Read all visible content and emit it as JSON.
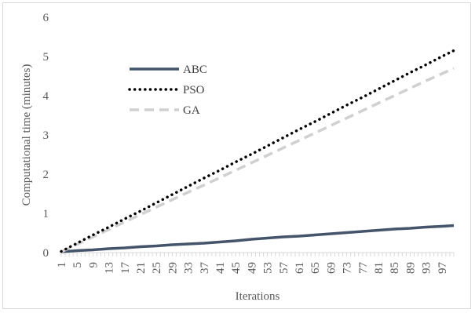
{
  "chart_data": {
    "type": "line",
    "title": "",
    "xlabel": "Iterations",
    "ylabel": "Computational time (minutes)",
    "ylim": [
      0,
      6
    ],
    "yticks": [
      0,
      1,
      2,
      3,
      4,
      5,
      6
    ],
    "x": [
      1,
      5,
      9,
      13,
      17,
      21,
      25,
      29,
      33,
      37,
      41,
      45,
      49,
      53,
      57,
      61,
      65,
      69,
      73,
      77,
      81,
      85,
      89,
      93,
      97,
      100
    ],
    "xtick_labels": [
      "1",
      "5",
      "9",
      "13",
      "17",
      "21",
      "25",
      "29",
      "33",
      "37",
      "41",
      "45",
      "49",
      "53",
      "57",
      "61",
      "65",
      "69",
      "73",
      "77",
      "81",
      "85",
      "89",
      "93",
      "97"
    ],
    "grid": false,
    "legend_placement": "upper-left",
    "series": [
      {
        "name": "ABC",
        "color": "#44546a",
        "style": "solid",
        "values": [
          0.02,
          0.05,
          0.07,
          0.1,
          0.12,
          0.15,
          0.17,
          0.2,
          0.22,
          0.24,
          0.27,
          0.3,
          0.34,
          0.37,
          0.4,
          0.42,
          0.45,
          0.48,
          0.51,
          0.54,
          0.57,
          0.6,
          0.62,
          0.65,
          0.67,
          0.69
        ]
      },
      {
        "name": "PSO",
        "color": "#000000",
        "style": "dotted",
        "values": [
          0.03,
          0.24,
          0.45,
          0.65,
          0.86,
          1.06,
          1.27,
          1.48,
          1.69,
          1.9,
          2.1,
          2.31,
          2.51,
          2.72,
          2.93,
          3.14,
          3.34,
          3.55,
          3.76,
          3.96,
          4.17,
          4.38,
          4.59,
          4.79,
          5.0,
          5.15
        ]
      },
      {
        "name": "GA",
        "color": "#d0d0d0",
        "style": "dashed",
        "values": [
          0.02,
          0.21,
          0.4,
          0.59,
          0.78,
          0.97,
          1.16,
          1.35,
          1.54,
          1.72,
          1.91,
          2.1,
          2.29,
          2.48,
          2.67,
          2.86,
          3.05,
          3.24,
          3.43,
          3.62,
          3.81,
          4.0,
          4.19,
          4.38,
          4.56,
          4.7
        ]
      }
    ]
  }
}
